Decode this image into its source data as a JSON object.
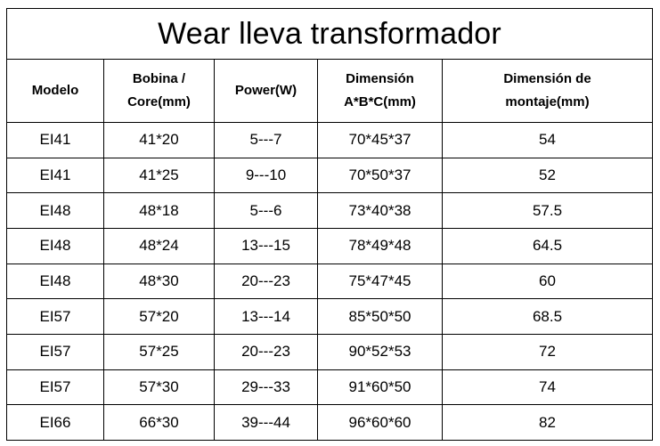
{
  "title": "Wear lleva transformador",
  "headers": [
    {
      "line1": "Modelo",
      "line2": ""
    },
    {
      "line1": "Bobina /",
      "line2": "Core(mm)"
    },
    {
      "line1": "Power(W)",
      "line2": ""
    },
    {
      "line1": "Dimensión",
      "line2": "A*B*C(mm)"
    },
    {
      "line1": "Dimensión de",
      "line2": "montaje(mm)"
    }
  ],
  "rows": [
    [
      "EI41",
      "41*20",
      "5---7",
      "70*45*37",
      "54"
    ],
    [
      "EI41",
      "41*25",
      "9---10",
      "70*50*37",
      "52"
    ],
    [
      "EI48",
      "48*18",
      "5---6",
      "73*40*38",
      "57.5"
    ],
    [
      "EI48",
      "48*24",
      "13---15",
      "78*49*48",
      "64.5"
    ],
    [
      "EI48",
      "48*30",
      "20---23",
      "75*47*45",
      "60"
    ],
    [
      "EI57",
      "57*20",
      "13---14",
      "85*50*50",
      "68.5"
    ],
    [
      "EI57",
      "57*25",
      "20---23",
      "90*52*53",
      "72"
    ],
    [
      "EI57",
      "57*30",
      "29---33",
      "91*60*50",
      "74"
    ],
    [
      "EI66",
      "66*30",
      "39---44",
      "96*60*60",
      "82"
    ]
  ]
}
